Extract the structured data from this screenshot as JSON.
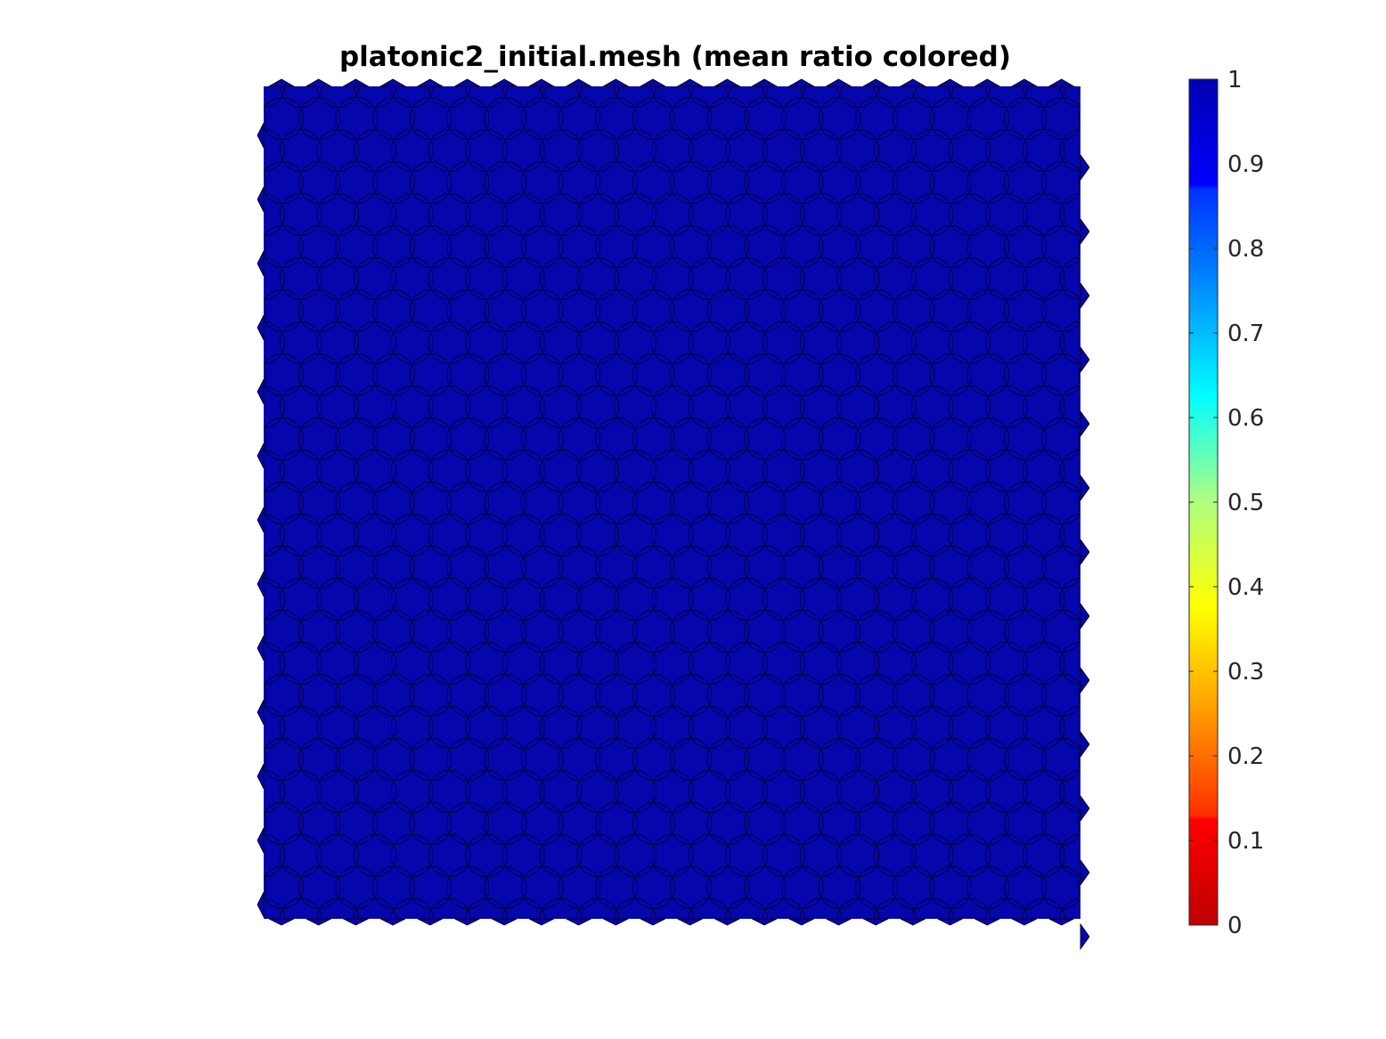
{
  "chart_data": {
    "type": "heatmap",
    "title": "platonic2_initial.mesh (mean ratio colored)",
    "plot_kind": "colored polygonal mesh (quality map)",
    "mesh_color_value": 0.97,
    "mesh_fill_color": "#0606ad",
    "edge_color": "#000000",
    "colorbar": {
      "label": "",
      "clim": [
        0,
        1
      ],
      "ticks": [
        0,
        0.1,
        0.2,
        0.3,
        0.4,
        0.5,
        0.6,
        0.7,
        0.8,
        0.9,
        1
      ],
      "tick_labels": [
        "0",
        "0.1",
        "0.2",
        "0.3",
        "0.4",
        "0.5",
        "0.6",
        "0.7",
        "0.8",
        "0.9",
        "1"
      ],
      "colormap": "jet",
      "stops": [
        {
          "value": 0.0,
          "color": "#c00000"
        },
        {
          "value": 0.125,
          "color": "#ff0000"
        },
        {
          "value": 0.13,
          "color": "#ff3000"
        },
        {
          "value": 0.25,
          "color": "#ff9a00"
        },
        {
          "value": 0.375,
          "color": "#ffff00"
        },
        {
          "value": 0.5,
          "color": "#b0ff80"
        },
        {
          "value": 0.625,
          "color": "#00ffff"
        },
        {
          "value": 0.75,
          "color": "#0090ff"
        },
        {
          "value": 0.87,
          "color": "#0030ff"
        },
        {
          "value": 0.875,
          "color": "#0000ff"
        },
        {
          "value": 1.0,
          "color": "#0000b0"
        }
      ]
    }
  }
}
